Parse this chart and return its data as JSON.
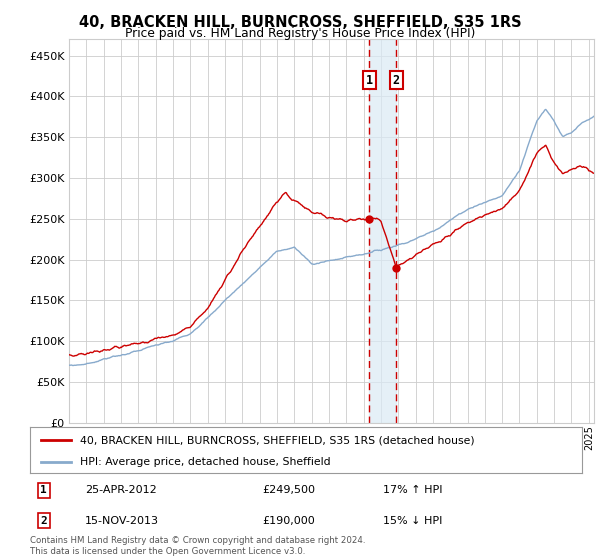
{
  "title": "40, BRACKEN HILL, BURNCROSS, SHEFFIELD, S35 1RS",
  "subtitle": "Price paid vs. HM Land Registry's House Price Index (HPI)",
  "ylabel_ticks": [
    "£0",
    "£50K",
    "£100K",
    "£150K",
    "£200K",
    "£250K",
    "£300K",
    "£350K",
    "£400K",
    "£450K"
  ],
  "ytick_values": [
    0,
    50000,
    100000,
    150000,
    200000,
    250000,
    300000,
    350000,
    400000,
    450000
  ],
  "ylim": [
    0,
    470000
  ],
  "xlim_start": 1995.0,
  "xlim_end": 2025.3,
  "red_line_color": "#cc0000",
  "blue_line_color": "#88aacc",
  "transaction1_x": 2012.32,
  "transaction1_y": 249500,
  "transaction2_x": 2013.88,
  "transaction2_y": 190000,
  "legend_label1": "40, BRACKEN HILL, BURNCROSS, SHEFFIELD, S35 1RS (detached house)",
  "legend_label2": "HPI: Average price, detached house, Sheffield",
  "info1_num": "1",
  "info1_date": "25-APR-2012",
  "info1_price": "£249,500",
  "info1_hpi": "17% ↑ HPI",
  "info2_num": "2",
  "info2_date": "15-NOV-2013",
  "info2_price": "£190,000",
  "info2_hpi": "15% ↓ HPI",
  "footnote": "Contains HM Land Registry data © Crown copyright and database right 2024.\nThis data is licensed under the Open Government Licence v3.0.",
  "background_color": "#ffffff",
  "grid_color": "#cccccc",
  "shade_color": "#daeaf5"
}
